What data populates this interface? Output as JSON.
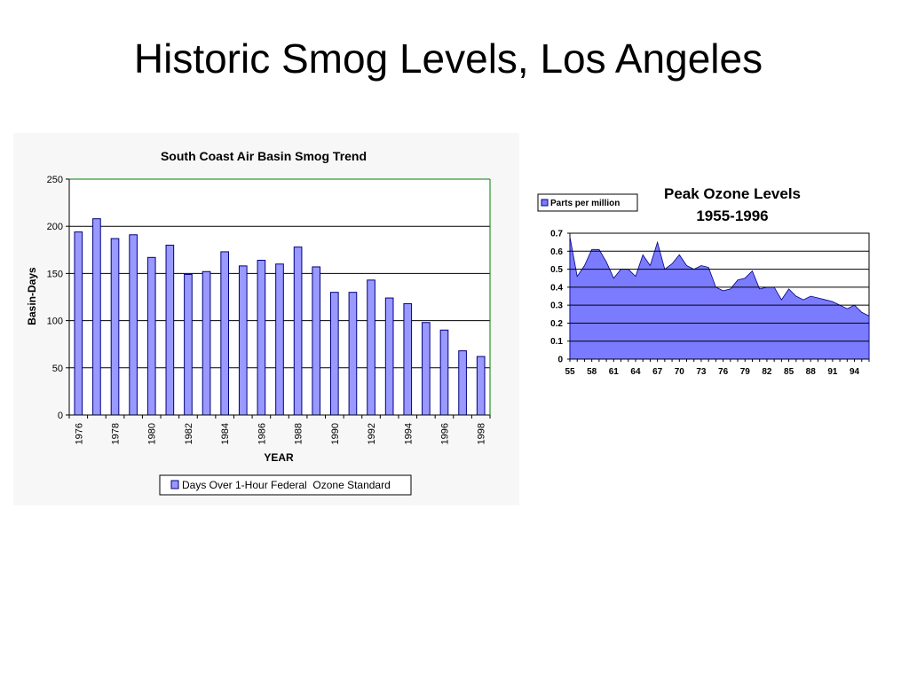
{
  "slide": {
    "title": "Historic Smog Levels, Los Angeles"
  },
  "chart_data": [
    {
      "type": "bar",
      "title": "South Coast Air Basin Smog Trend",
      "xlabel": "YEAR",
      "ylabel": "Basin-Days",
      "ylim": [
        0,
        250
      ],
      "yticks": [
        0,
        50,
        100,
        150,
        200,
        250
      ],
      "categories": [
        "1976",
        "1977",
        "1978",
        "1979",
        "1980",
        "1981",
        "1982",
        "1983",
        "1984",
        "1985",
        "1986",
        "1987",
        "1988",
        "1989",
        "1990",
        "1991",
        "1992",
        "1993",
        "1994",
        "1995",
        "1996",
        "1997",
        "1998"
      ],
      "x_tick_labels": [
        "1976",
        "1978",
        "1980",
        "1982",
        "1984",
        "1986",
        "1988",
        "1990",
        "1992",
        "1994",
        "1996",
        "1998"
      ],
      "series": [
        {
          "name": "Days Over 1-Hour Federal  Ozone Standard",
          "values": [
            194,
            208,
            187,
            191,
            167,
            180,
            149,
            152,
            173,
            158,
            164,
            160,
            178,
            157,
            130,
            130,
            143,
            124,
            118,
            98,
            90,
            68,
            62
          ]
        }
      ],
      "grid": true,
      "legend_position": "bottom",
      "colors": {
        "bar": "#9999ff",
        "bar_outline": "#000080",
        "plot_border": "#008000",
        "background": "#f7f7f7"
      }
    },
    {
      "type": "area",
      "title": "Peak Ozone Levels",
      "subtitle": "1955-1996",
      "ylim": [
        0,
        0.7
      ],
      "yticks": [
        "0",
        "0.1",
        "0.2",
        "0.3",
        "0.4",
        "0.5",
        "0.6",
        "0.7"
      ],
      "x": [
        55,
        56,
        57,
        58,
        59,
        60,
        61,
        62,
        63,
        64,
        65,
        66,
        67,
        68,
        69,
        70,
        71,
        72,
        73,
        74,
        75,
        76,
        77,
        78,
        79,
        80,
        81,
        82,
        83,
        84,
        85,
        86,
        87,
        88,
        89,
        90,
        91,
        92,
        93,
        94,
        95,
        96
      ],
      "x_tick_labels": [
        "55",
        "58",
        "61",
        "64",
        "67",
        "70",
        "73",
        "76",
        "79",
        "82",
        "85",
        "88",
        "91",
        "94"
      ],
      "series": [
        {
          "name": "Parts per million",
          "values": [
            0.68,
            0.46,
            0.52,
            0.61,
            0.61,
            0.54,
            0.45,
            0.5,
            0.5,
            0.46,
            0.58,
            0.52,
            0.65,
            0.5,
            0.53,
            0.58,
            0.52,
            0.5,
            0.52,
            0.51,
            0.4,
            0.38,
            0.39,
            0.44,
            0.45,
            0.49,
            0.39,
            0.4,
            0.4,
            0.33,
            0.39,
            0.35,
            0.33,
            0.35,
            0.34,
            0.33,
            0.32,
            0.3,
            0.28,
            0.3,
            0.26,
            0.24
          ]
        }
      ],
      "grid": true,
      "legend_position": "top-left",
      "colors": {
        "area": "#7b7bff",
        "area_outline": "#000080",
        "gridline": "#000000"
      }
    }
  ]
}
